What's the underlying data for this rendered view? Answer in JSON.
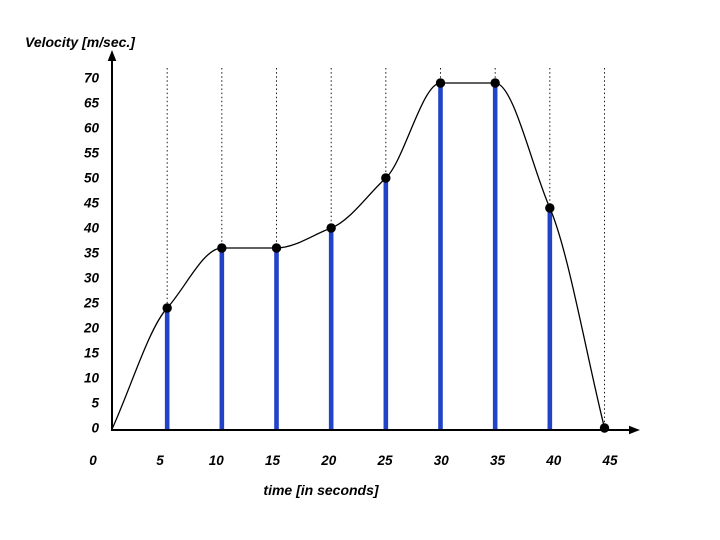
{
  "chart_data": {
    "type": "line",
    "title": "Velocity [m/sec.]",
    "xlabel": "time [in seconds]",
    "ylabel": "Velocity [m/sec.]",
    "x": [
      0,
      5,
      10,
      15,
      20,
      25,
      30,
      35,
      40,
      45
    ],
    "values": [
      0,
      24,
      36,
      36,
      40,
      50,
      69,
      69,
      44,
      0
    ],
    "x_tick_labels": [
      "0",
      "5",
      "10",
      "15",
      "20",
      "25",
      "30",
      "35",
      "40",
      "45"
    ],
    "y_tick_labels": [
      "0",
      "5",
      "10",
      "15",
      "20",
      "25",
      "30",
      "35",
      "40",
      "45",
      "50",
      "55",
      "60",
      "65",
      "70"
    ],
    "xlim": [
      0,
      45
    ],
    "ylim": [
      0,
      70
    ],
    "grid": "vertical-dotted",
    "legend": "none",
    "marker_on_first_point": false,
    "style": {
      "stem_color": "#2143C8",
      "line_color": "#000000",
      "marker_color": "#000000",
      "axis_color": "#000000",
      "background": "#FFFFFF"
    }
  }
}
